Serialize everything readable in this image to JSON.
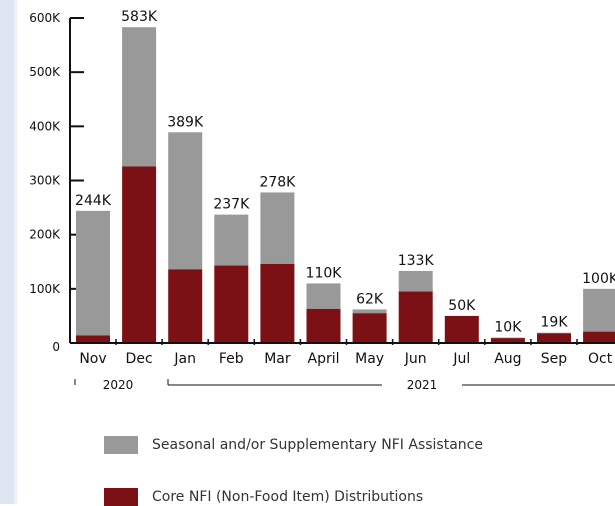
{
  "chart_data": {
    "type": "bar",
    "stacked": true,
    "categories": [
      "Nov",
      "Dec",
      "Jan",
      "Feb",
      "Mar",
      "April",
      "May",
      "Jun",
      "Jul",
      "Aug",
      "Sep",
      "Oct"
    ],
    "year_groups": [
      {
        "label": "2020"
      },
      {
        "label": "2021"
      }
    ],
    "series": [
      {
        "name": "Core NFI (Non-Food Item) Distributions",
        "color": "#7b1114",
        "values": [
          14000,
          326000,
          136000,
          143000,
          146000,
          63000,
          55000,
          95000,
          50000,
          9000,
          18000,
          21000
        ]
      },
      {
        "name": "Seasonal and/or Supplementary NFI Assistance",
        "color": "#999999",
        "values": [
          230000,
          257000,
          253000,
          94000,
          132000,
          47000,
          7000,
          38000,
          0,
          1000,
          1000,
          79000
        ]
      }
    ],
    "totals": [
      "244K",
      "583K",
      "389K",
      "237K",
      "278K",
      "110K",
      "62K",
      "133K",
      "50K",
      "10K",
      "19K",
      "100K"
    ],
    "ylim": [
      0,
      600000
    ],
    "yticks": [
      0,
      100000,
      200000,
      300000,
      400000,
      500000,
      600000
    ],
    "ytick_labels": [
      "0",
      "100K",
      "200K",
      "300K",
      "400K",
      "500K",
      "600K"
    ],
    "legend_position": "bottom",
    "grid": false
  }
}
